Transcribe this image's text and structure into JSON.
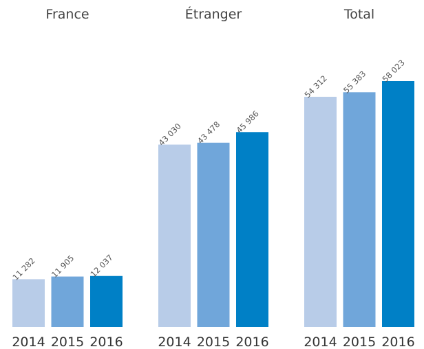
{
  "chart_data": [
    {
      "type": "bar",
      "title": "France",
      "categories": [
        "2014",
        "2015",
        "2016"
      ],
      "values": [
        11282,
        11905,
        12037
      ],
      "value_labels": [
        "11 282",
        "11 905",
        "12 037"
      ],
      "colors": [
        "#b8cce8",
        "#70a6da",
        "#0080c6"
      ]
    },
    {
      "type": "bar",
      "title": "Étranger",
      "categories": [
        "2014",
        "2015",
        "2016"
      ],
      "values": [
        43030,
        43478,
        45986
      ],
      "value_labels": [
        "43 030",
        "43 478",
        "45 986"
      ],
      "colors": [
        "#b8cce8",
        "#70a6da",
        "#0080c6"
      ]
    },
    {
      "type": "bar",
      "title": "Total",
      "categories": [
        "2014",
        "2015",
        "2016"
      ],
      "values": [
        54312,
        55383,
        58023
      ],
      "value_labels": [
        "54 312",
        "55 383",
        "58 023"
      ],
      "colors": [
        "#b8cce8",
        "#70a6da",
        "#0080c6"
      ]
    }
  ]
}
